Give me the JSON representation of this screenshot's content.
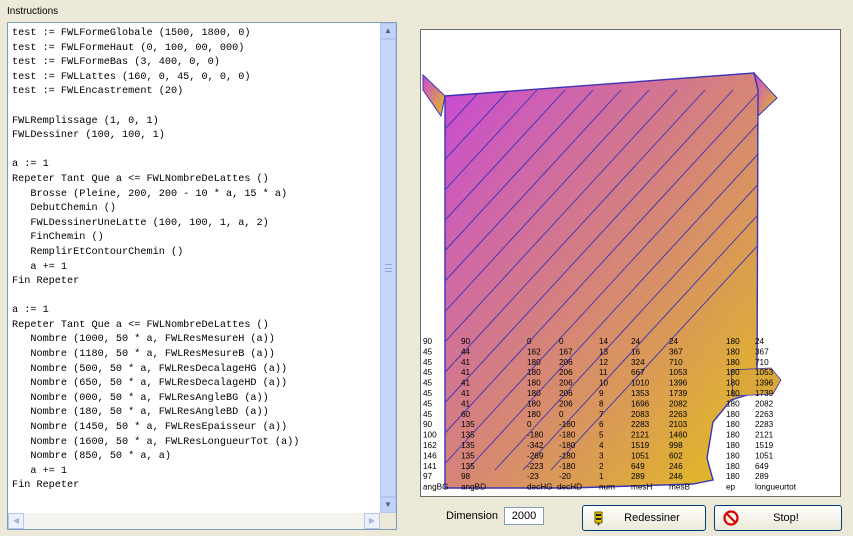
{
  "panel": {
    "title": "Instructions"
  },
  "code_lines": [
    "test := FWLFormeGlobale (1500, 1800, 0)",
    "test := FWLFormeHaut (0, 100, 00, 000)",
    "test := FWLFormeBas (3, 400, 0, 0)",
    "test := FWLLattes (160, 0, 45, 0, 0, 0)",
    "test := FWLEncastrement (20)",
    "",
    "FWLRemplissage (1, 0, 1)",
    "FWLDessiner (100, 100, 1)",
    "",
    "a := 1",
    "Repeter Tant Que a <= FWLNombreDeLattes ()",
    "   Brosse (Pleine, 200, 200 - 10 * a, 15 * a)",
    "   DebutChemin ()",
    "   FWLDessinerUneLatte (100, 100, 1, a, 2)",
    "   FinChemin ()",
    "   RemplirEtContourChemin ()",
    "   a += 1",
    "Fin Repeter",
    "",
    "a := 1",
    "Repeter Tant Que a <= FWLNombreDeLattes ()",
    "   Nombre (1000, 50 * a, FWLResMesureH (a))",
    "   Nombre (1180, 50 * a, FWLResMesureB (a))",
    "   Nombre (500, 50 * a, FWLResDecalageHG (a))",
    "   Nombre (650, 50 * a, FWLResDecalageHD (a))",
    "   Nombre (000, 50 * a, FWLResAngleBG (a))",
    "   Nombre (180, 50 * a, FWLResAngleBD (a))",
    "   Nombre (1450, 50 * a, FWLResEpaisseur (a))",
    "   Nombre (1600, 50 * a, FWLResLongueurTot (a))",
    "   Nombre (850, 50 * a, a)",
    "   a += 1",
    "Fin Repeter"
  ],
  "table": {
    "rows": [
      [
        "90",
        "90",
        "0",
        "0",
        "14",
        "24",
        "24",
        "180",
        "24"
      ],
      [
        "45",
        "44",
        "162",
        "167",
        "13",
        "16",
        "367",
        "180",
        "367"
      ],
      [
        "45",
        "41",
        "180",
        "206",
        "12",
        "324",
        "710",
        "180",
        "710"
      ],
      [
        "45",
        "41",
        "180",
        "206",
        "11",
        "667",
        "1053",
        "180",
        "1053"
      ],
      [
        "45",
        "41",
        "180",
        "206",
        "10",
        "1010",
        "1396",
        "180",
        "1396"
      ],
      [
        "45",
        "41",
        "180",
        "206",
        "9",
        "1353",
        "1739",
        "180",
        "1739"
      ],
      [
        "45",
        "41",
        "180",
        "206",
        "8",
        "1696",
        "2082",
        "180",
        "2082"
      ],
      [
        "45",
        "60",
        "180",
        "0",
        "7",
        "2083",
        "2263",
        "180",
        "2263"
      ],
      [
        "90",
        "135",
        "0",
        "-180",
        "6",
        "2283",
        "2103",
        "180",
        "2283"
      ],
      [
        "100",
        "135",
        "-180",
        "-180",
        "5",
        "2121",
        "1460",
        "180",
        "2121"
      ],
      [
        "162",
        "135",
        "-342",
        "-180",
        "4",
        "1519",
        "998",
        "180",
        "1519"
      ],
      [
        "146",
        "135",
        "-269",
        "-180",
        "3",
        "1051",
        "602",
        "180",
        "1051"
      ],
      [
        "141",
        "135",
        "-223",
        "-180",
        "2",
        "649",
        "246",
        "180",
        "649"
      ],
      [
        "97",
        "98",
        "-23",
        "-20",
        "1",
        "289",
        "246",
        "180",
        "289"
      ]
    ],
    "headers": [
      "angBG",
      "angBD",
      "decHG",
      "decHD",
      "num",
      "mesH",
      "mesB",
      "ep",
      "longueurtot"
    ]
  },
  "bottom": {
    "dimension_label": "Dimension",
    "dimension_value": "2000",
    "redraw_label": "Redessiner",
    "stop_label": "Stop!"
  },
  "colors": {
    "fill_top": "#c94ad6",
    "fill_bottom": "#e2c019",
    "stroke": "#3a32b8"
  },
  "icons": {
    "redraw": "pencil-icon",
    "stop": "stop-icon"
  }
}
